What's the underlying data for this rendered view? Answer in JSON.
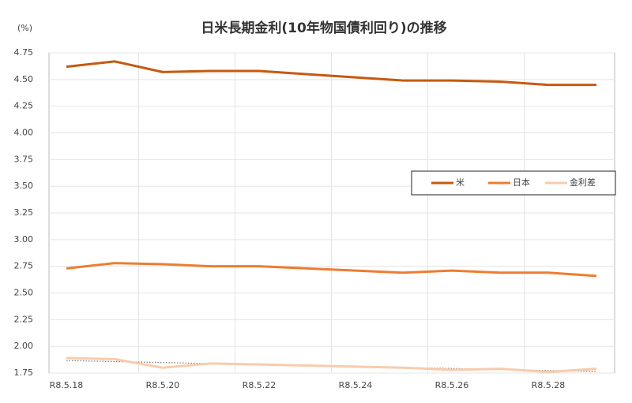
{
  "chart_data": {
    "type": "line",
    "title": "日米長期金利(10年物国債利回り)の推移",
    "y_unit": "(%)",
    "categories": [
      "R8.5.18",
      null,
      "R8.5.20",
      null,
      "R8.5.22",
      null,
      "R8.5.24",
      null,
      "R8.5.26",
      null,
      "R8.5.28",
      null
    ],
    "series": [
      {
        "name": "米",
        "color": "#c55a11",
        "values": [
          4.62,
          4.67,
          4.57,
          4.58,
          4.58,
          4.55,
          4.52,
          4.49,
          4.49,
          4.48,
          4.45,
          4.45
        ]
      },
      {
        "name": "日本",
        "color": "#ed7d31",
        "values": [
          2.73,
          2.78,
          2.77,
          2.75,
          2.75,
          2.73,
          2.71,
          2.69,
          2.71,
          2.69,
          2.69,
          2.66
        ]
      },
      {
        "name": "金利差",
        "color": "#f8cbad",
        "trendline": true,
        "values": [
          1.89,
          1.88,
          1.8,
          1.84,
          1.83,
          1.82,
          1.81,
          1.8,
          1.78,
          1.79,
          1.76,
          1.79
        ]
      }
    ],
    "ylim": [
      1.75,
      4.75
    ],
    "yticks": [
      1.75,
      {
        "value": 2,
        "label": "2.00"
      },
      2.25,
      {
        "value": 2.5,
        "label": "2.50"
      },
      2.75,
      {
        "value": 3,
        "label": "3.00"
      },
      3.25,
      {
        "value": 3.5,
        "label": "3.50"
      },
      3.75,
      {
        "value": 4,
        "label": "4.00"
      },
      4.25,
      {
        "value": 4.5,
        "label": "4.50"
      },
      4.75
    ],
    "grid": true,
    "legend": "right"
  }
}
